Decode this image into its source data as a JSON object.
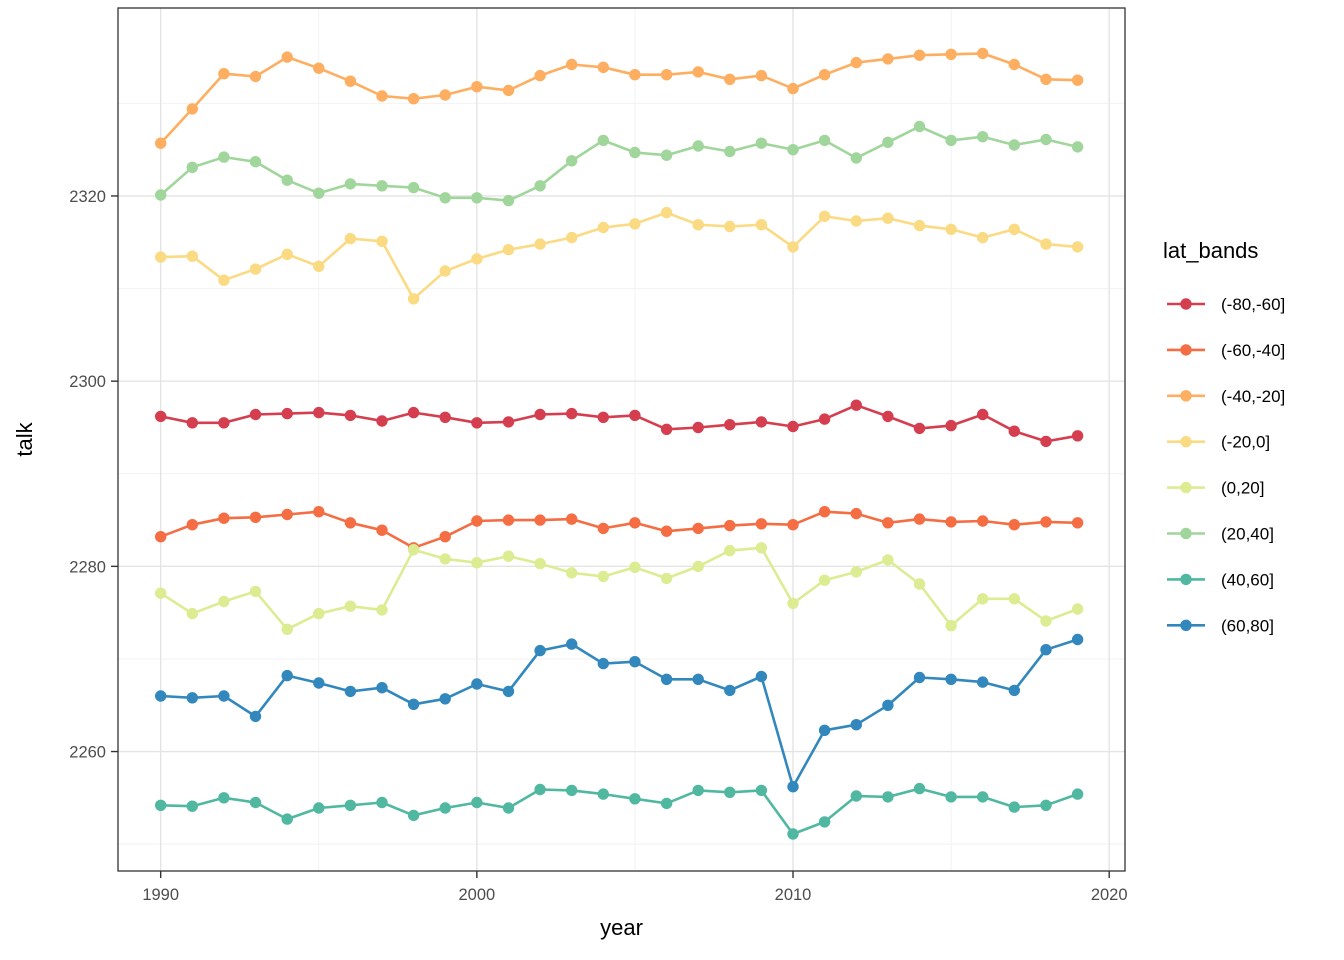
{
  "figure": {
    "background": "#ffffff"
  },
  "chart_data": {
    "type": "line",
    "title": "",
    "xlabel": "year",
    "ylabel": "talk",
    "legend_title": "lat_bands",
    "legend_position": "right",
    "grid": true,
    "x": [
      1990,
      1991,
      1992,
      1993,
      1994,
      1995,
      1996,
      1997,
      1998,
      1999,
      2000,
      2001,
      2002,
      2003,
      2004,
      2005,
      2006,
      2007,
      2008,
      2009,
      2010,
      2011,
      2012,
      2013,
      2014,
      2015,
      2016,
      2017,
      2018,
      2019
    ],
    "x_ticks": [
      1990,
      2000,
      2010,
      2020
    ],
    "x_minor_ticks": [
      1995,
      2005,
      2015
    ],
    "y_ticks": [
      2260,
      2280,
      2300,
      2320
    ],
    "y_minor_ticks": [
      2250,
      2270,
      2290,
      2310,
      2330
    ],
    "xlim": [
      1988.65,
      2020.5
    ],
    "ylim": [
      2247.1,
      2340.3
    ],
    "series": [
      {
        "name": "(-80,-60]",
        "color": "#d53e4f",
        "values": [
          2296.2,
          2295.5,
          2295.5,
          2296.4,
          2296.5,
          2296.6,
          2296.3,
          2295.7,
          2296.6,
          2296.1,
          2295.5,
          2295.6,
          2296.4,
          2296.5,
          2296.1,
          2296.3,
          2294.8,
          2295.0,
          2295.3,
          2295.6,
          2295.1,
          2295.9,
          2297.4,
          2296.2,
          2294.9,
          2295.2,
          2296.4,
          2294.6,
          2293.5,
          2294.1
        ]
      },
      {
        "name": "(-60,-40]",
        "color": "#f46d43",
        "values": [
          2283.2,
          2284.5,
          2285.2,
          2285.3,
          2285.6,
          2285.9,
          2284.7,
          2283.9,
          2282.0,
          2283.2,
          2284.9,
          2285.0,
          2285.0,
          2285.1,
          2284.1,
          2284.7,
          2283.8,
          2284.1,
          2284.4,
          2284.6,
          2284.5,
          2285.9,
          2285.7,
          2284.7,
          2285.1,
          2284.8,
          2284.9,
          2284.5,
          2284.8,
          2284.7
        ]
      },
      {
        "name": "(-40,-20]",
        "color": "#fdae61",
        "values": [
          2325.7,
          2329.4,
          2333.2,
          2332.9,
          2335.0,
          2333.8,
          2332.4,
          2330.8,
          2330.5,
          2330.9,
          2331.8,
          2331.4,
          2333.0,
          2334.2,
          2333.9,
          2333.1,
          2333.1,
          2333.4,
          2332.6,
          2333.0,
          2331.6,
          2333.1,
          2334.4,
          2334.8,
          2335.2,
          2335.3,
          2335.4,
          2334.2,
          2332.6,
          2332.5
        ]
      },
      {
        "name": "(-20,0]",
        "color": "#fbda84",
        "values": [
          2313.4,
          2313.5,
          2310.9,
          2312.1,
          2313.7,
          2312.4,
          2315.4,
          2315.1,
          2308.9,
          2311.9,
          2313.2,
          2314.2,
          2314.8,
          2315.5,
          2316.6,
          2317.0,
          2318.2,
          2316.9,
          2316.7,
          2316.9,
          2314.5,
          2317.8,
          2317.3,
          2317.6,
          2316.8,
          2316.4,
          2315.5,
          2316.4,
          2314.8,
          2314.5
        ]
      },
      {
        "name": "(0,20]",
        "color": "#dcec92",
        "values": [
          2277.1,
          2274.9,
          2276.2,
          2277.3,
          2273.2,
          2274.9,
          2275.7,
          2275.3,
          2281.8,
          2280.8,
          2280.4,
          2281.1,
          2280.3,
          2279.3,
          2278.9,
          2279.9,
          2278.7,
          2280.0,
          2281.7,
          2282.0,
          2276.0,
          2278.5,
          2279.4,
          2280.7,
          2278.1,
          2273.6,
          2276.5,
          2276.5,
          2274.1,
          2275.4
        ]
      },
      {
        "name": "(20,40]",
        "color": "#a0d69b",
        "values": [
          2320.1,
          2323.1,
          2324.2,
          2323.7,
          2321.7,
          2320.3,
          2321.3,
          2321.1,
          2320.9,
          2319.8,
          2319.8,
          2319.5,
          2321.1,
          2323.8,
          2326.0,
          2324.7,
          2324.4,
          2325.4,
          2324.8,
          2325.7,
          2325.0,
          2326.0,
          2324.1,
          2325.8,
          2327.5,
          2326.0,
          2326.4,
          2325.5,
          2326.1,
          2325.3
        ]
      },
      {
        "name": "(40,60]",
        "color": "#50b8a0",
        "values": [
          2254.2,
          2254.1,
          2255.0,
          2254.5,
          2252.7,
          2253.9,
          2254.2,
          2254.5,
          2253.1,
          2253.9,
          2254.5,
          2253.9,
          2255.9,
          2255.8,
          2255.4,
          2254.9,
          2254.4,
          2255.8,
          2255.6,
          2255.8,
          2251.1,
          2252.4,
          2255.2,
          2255.1,
          2256.0,
          2255.1,
          2255.1,
          2254.0,
          2254.2,
          2255.4
        ]
      },
      {
        "name": "(60,80]",
        "color": "#3288bd",
        "values": [
          2266.0,
          2265.8,
          2266.0,
          2263.8,
          2268.2,
          2267.4,
          2266.5,
          2266.9,
          2265.1,
          2265.7,
          2267.3,
          2266.5,
          2270.9,
          2271.6,
          2269.5,
          2269.7,
          2267.8,
          2267.8,
          2266.6,
          2268.1,
          2256.2,
          2262.3,
          2262.9,
          2265.0,
          2268.0,
          2267.8,
          2267.5,
          2266.6,
          2271.0,
          2272.1
        ]
      }
    ]
  },
  "axis_tick_labels": {
    "x": [
      "1990",
      "2000",
      "2010",
      "2020"
    ],
    "y": [
      "2260",
      "2280",
      "2300",
      "2320"
    ]
  },
  "colors": {
    "panel_background": "#ffffff",
    "panel_border": "#333333",
    "grid_major": "#e4e4e4",
    "grid_minor": "#f2f2f2",
    "tick_mark": "#333333",
    "tick_label": "#4d4d4d",
    "axis_title": "#000000",
    "legend_title": "#000000",
    "legend_label": "#000000"
  }
}
